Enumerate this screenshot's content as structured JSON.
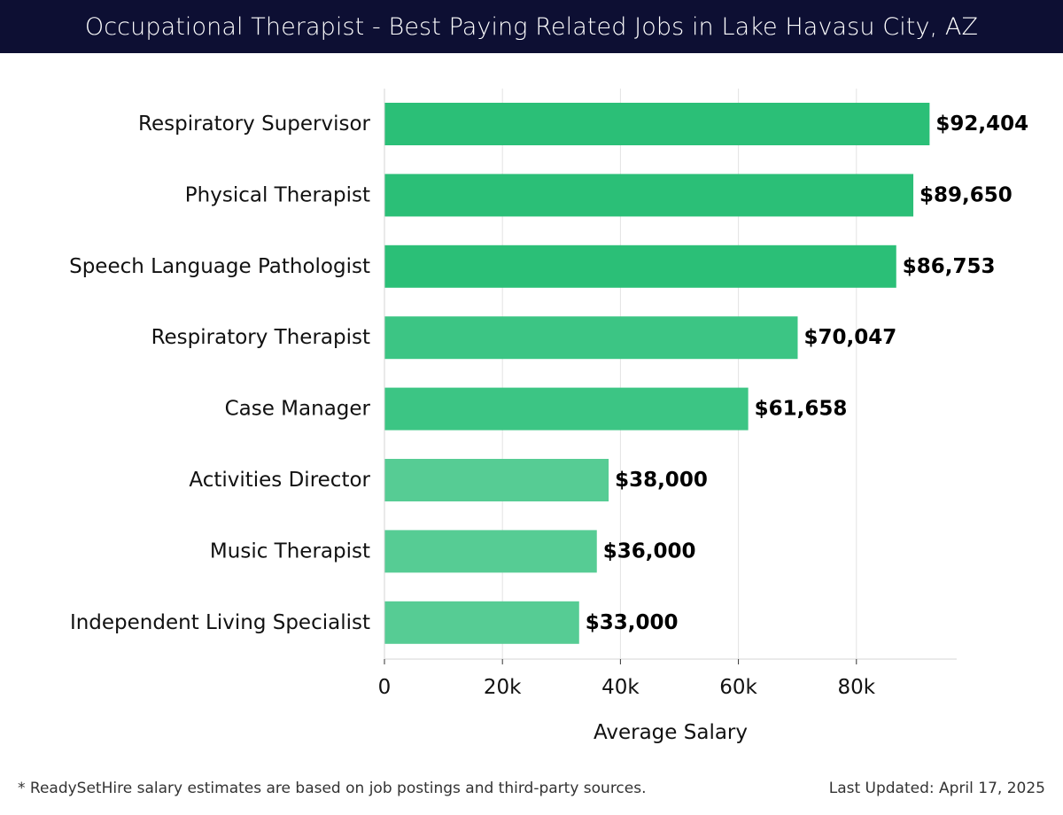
{
  "header": {
    "title": "Occupational Therapist - Best Paying Related Jobs in Lake Havasu City, AZ"
  },
  "footer": {
    "note": "* ReadySetHire salary estimates are based on job postings and third-party sources.",
    "updated": "Last Updated: April 17, 2025"
  },
  "colors": {
    "header_bg": "#0d0f33",
    "bar_dark": "#2bbf77",
    "bar_mid": "#3cc584",
    "bar_light": "#56cc94",
    "grid": "#e3e3e3"
  },
  "chart_data": {
    "type": "bar",
    "orientation": "horizontal",
    "title": "Occupational Therapist - Best Paying Related Jobs in Lake Havasu City, AZ",
    "xlabel": "Average Salary",
    "ylabel": "",
    "categories": [
      "Respiratory Supervisor",
      "Physical Therapist",
      "Speech Language Pathologist",
      "Respiratory Therapist",
      "Case Manager",
      "Activities Director",
      "Music Therapist",
      "Independent Living Specialist"
    ],
    "values": [
      92404,
      89650,
      86753,
      70047,
      61658,
      38000,
      36000,
      33000
    ],
    "value_labels": [
      "$92,404",
      "$89,650",
      "$86,753",
      "$70,047",
      "$61,658",
      "$38,000",
      "$36,000",
      "$33,000"
    ],
    "xlim": [
      0,
      97000
    ],
    "xticks": [
      0,
      20000,
      40000,
      60000,
      80000
    ],
    "xtick_labels": [
      "0",
      "20k",
      "40k",
      "60k",
      "80k"
    ],
    "grid": true
  }
}
